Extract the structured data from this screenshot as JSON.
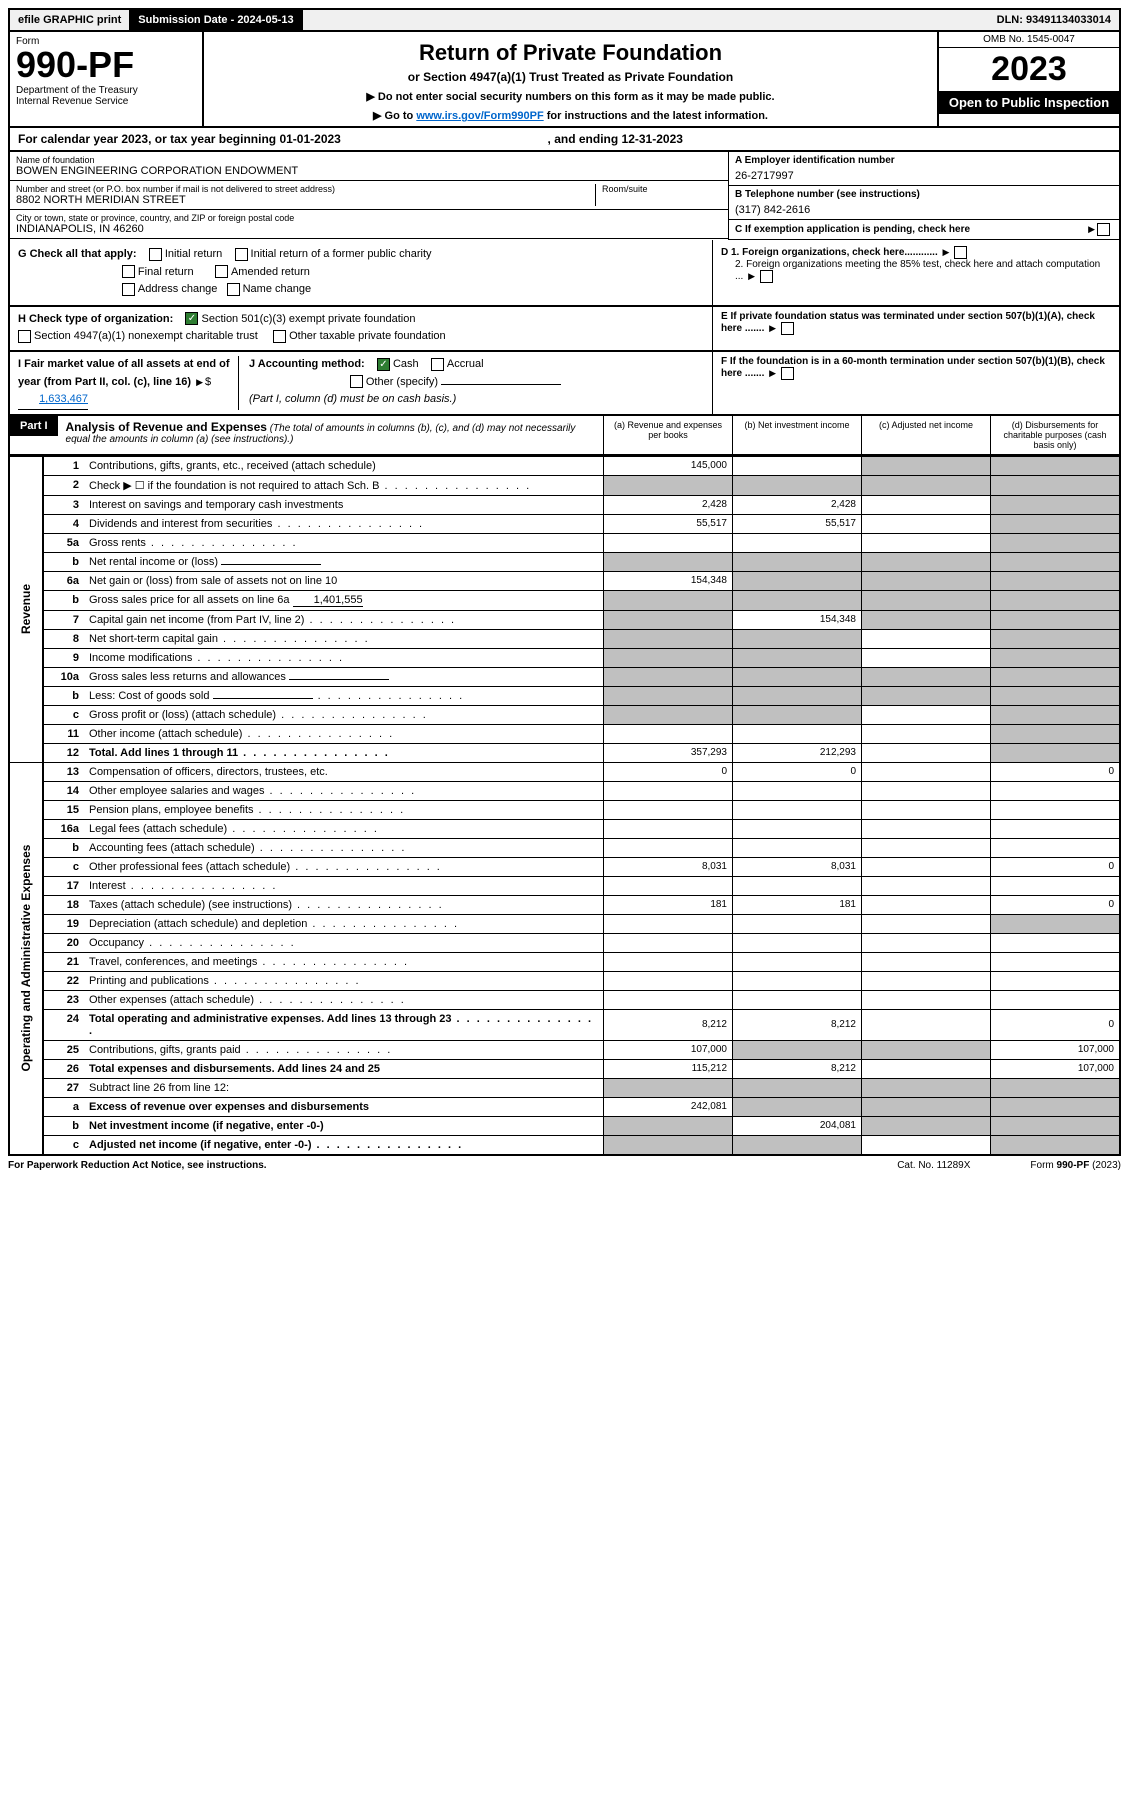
{
  "topbar": {
    "efile": "efile GRAPHIC print",
    "sub_label": "Submission Date - 2024-05-13",
    "dln": "DLN: 93491134033014"
  },
  "header": {
    "form_label": "Form",
    "form_number": "990-PF",
    "dept": "Department of the Treasury",
    "irs": "Internal Revenue Service",
    "title": "Return of Private Foundation",
    "subtitle": "or Section 4947(a)(1) Trust Treated as Private Foundation",
    "instr1": "▶ Do not enter social security numbers on this form as it may be made public.",
    "instr2_pre": "▶ Go to ",
    "instr2_link": "www.irs.gov/Form990PF",
    "instr2_post": " for instructions and the latest information.",
    "omb": "OMB No. 1545-0047",
    "year": "2023",
    "inspection": "Open to Public Inspection"
  },
  "calendar": {
    "text_pre": "For calendar year 2023, or tax year beginning ",
    "begin": "01-01-2023",
    "mid": " , and ending ",
    "end": "12-31-2023"
  },
  "entity": {
    "name_label": "Name of foundation",
    "name": "BOWEN ENGINEERING CORPORATION ENDOWMENT",
    "addr_label": "Number and street (or P.O. box number if mail is not delivered to street address)",
    "addr": "8802 NORTH MERIDIAN STREET",
    "room_label": "Room/suite",
    "city_label": "City or town, state or province, country, and ZIP or foreign postal code",
    "city": "INDIANAPOLIS, IN  46260",
    "ein_label": "A Employer identification number",
    "ein": "26-2717997",
    "phone_label": "B Telephone number (see instructions)",
    "phone": "(317) 842-2616",
    "c_label": "C If exemption application is pending, check here"
  },
  "checks": {
    "g_label": "G Check all that apply:",
    "g_opts": [
      "Initial return",
      "Initial return of a former public charity",
      "Final return",
      "Amended return",
      "Address change",
      "Name change"
    ],
    "h_label": "H Check type of organization:",
    "h_opt1": "Section 501(c)(3) exempt private foundation",
    "h_opt2": "Section 4947(a)(1) nonexempt charitable trust",
    "h_opt3": "Other taxable private foundation",
    "i_label": "I Fair market value of all assets at end of year (from Part II, col. (c), line 16)",
    "i_val": "1,633,467",
    "j_label": "J Accounting method:",
    "j_cash": "Cash",
    "j_accrual": "Accrual",
    "j_other": "Other (specify)",
    "j_note": "(Part I, column (d) must be on cash basis.)",
    "d1": "D 1. Foreign organizations, check here............",
    "d2": "2. Foreign organizations meeting the 85% test, check here and attach computation ...",
    "e_label": "E  If private foundation status was terminated under section 507(b)(1)(A), check here .......",
    "f_label": "F  If the foundation is in a 60-month termination under section 507(b)(1)(B), check here ......."
  },
  "part1": {
    "label": "Part I",
    "title": "Analysis of Revenue and Expenses",
    "note": " (The total of amounts in columns (b), (c), and (d) may not necessarily equal the amounts in column (a) (see instructions).)",
    "col_a": "(a)   Revenue and expenses per books",
    "col_b": "(b)   Net investment income",
    "col_c": "(c)   Adjusted net income",
    "col_d": "(d)   Disbursements for charitable purposes (cash basis only)"
  },
  "sidelabels": {
    "revenue": "Revenue",
    "opex": "Operating and Administrative Expenses"
  },
  "rows": [
    {
      "n": "1",
      "d": "Contributions, gifts, grants, etc., received (attach schedule)",
      "a": "145,000",
      "b": "",
      "c": "grey",
      "dcol": "grey"
    },
    {
      "n": "2",
      "d": "Check ▶ ☐ if the foundation is not required to attach Sch. B",
      "a": "grey",
      "b": "grey",
      "c": "grey",
      "dcol": "grey",
      "dots": true
    },
    {
      "n": "3",
      "d": "Interest on savings and temporary cash investments",
      "a": "2,428",
      "b": "2,428",
      "c": "",
      "dcol": "grey"
    },
    {
      "n": "4",
      "d": "Dividends and interest from securities",
      "a": "55,517",
      "b": "55,517",
      "c": "",
      "dcol": "grey",
      "dots": true
    },
    {
      "n": "5a",
      "d": "Gross rents",
      "a": "",
      "b": "",
      "c": "",
      "dcol": "grey",
      "dots": true
    },
    {
      "n": "b",
      "d": "Net rental income or (loss)",
      "a": "grey",
      "b": "grey",
      "c": "grey",
      "dcol": "grey",
      "inline": true
    },
    {
      "n": "6a",
      "d": "Net gain or (loss) from sale of assets not on line 10",
      "a": "154,348",
      "b": "grey",
      "c": "grey",
      "dcol": "grey"
    },
    {
      "n": "b",
      "d": "Gross sales price for all assets on line 6a",
      "a": "grey",
      "b": "grey",
      "c": "grey",
      "dcol": "grey",
      "inline_val": "1,401,555"
    },
    {
      "n": "7",
      "d": "Capital gain net income (from Part IV, line 2)",
      "a": "grey",
      "b": "154,348",
      "c": "grey",
      "dcol": "grey",
      "dots": true
    },
    {
      "n": "8",
      "d": "Net short-term capital gain",
      "a": "grey",
      "b": "grey",
      "c": "",
      "dcol": "grey",
      "dots": true
    },
    {
      "n": "9",
      "d": "Income modifications",
      "a": "grey",
      "b": "grey",
      "c": "",
      "dcol": "grey",
      "dots": true
    },
    {
      "n": "10a",
      "d": "Gross sales less returns and allowances",
      "a": "grey",
      "b": "grey",
      "c": "grey",
      "dcol": "grey",
      "inline": true
    },
    {
      "n": "b",
      "d": "Less: Cost of goods sold",
      "a": "grey",
      "b": "grey",
      "c": "grey",
      "dcol": "grey",
      "inline": true,
      "dots": true
    },
    {
      "n": "c",
      "d": "Gross profit or (loss) (attach schedule)",
      "a": "grey",
      "b": "grey",
      "c": "",
      "dcol": "grey",
      "dots": true
    },
    {
      "n": "11",
      "d": "Other income (attach schedule)",
      "a": "",
      "b": "",
      "c": "",
      "dcol": "grey",
      "dots": true
    },
    {
      "n": "12",
      "d": "Total. Add lines 1 through 11",
      "a": "357,293",
      "b": "212,293",
      "c": "",
      "dcol": "grey",
      "bold": true,
      "dots": true
    },
    {
      "n": "13",
      "d": "Compensation of officers, directors, trustees, etc.",
      "a": "0",
      "b": "0",
      "c": "",
      "dcol": "0"
    },
    {
      "n": "14",
      "d": "Other employee salaries and wages",
      "a": "",
      "b": "",
      "c": "",
      "dcol": "",
      "dots": true
    },
    {
      "n": "15",
      "d": "Pension plans, employee benefits",
      "a": "",
      "b": "",
      "c": "",
      "dcol": "",
      "dots": true
    },
    {
      "n": "16a",
      "d": "Legal fees (attach schedule)",
      "a": "",
      "b": "",
      "c": "",
      "dcol": "",
      "dots": true
    },
    {
      "n": "b",
      "d": "Accounting fees (attach schedule)",
      "a": "",
      "b": "",
      "c": "",
      "dcol": "",
      "dots": true
    },
    {
      "n": "c",
      "d": "Other professional fees (attach schedule)",
      "a": "8,031",
      "b": "8,031",
      "c": "",
      "dcol": "0",
      "dots": true
    },
    {
      "n": "17",
      "d": "Interest",
      "a": "",
      "b": "",
      "c": "",
      "dcol": "",
      "dots": true
    },
    {
      "n": "18",
      "d": "Taxes (attach schedule) (see instructions)",
      "a": "181",
      "b": "181",
      "c": "",
      "dcol": "0",
      "dots": true
    },
    {
      "n": "19",
      "d": "Depreciation (attach schedule) and depletion",
      "a": "",
      "b": "",
      "c": "",
      "dcol": "grey",
      "dots": true
    },
    {
      "n": "20",
      "d": "Occupancy",
      "a": "",
      "b": "",
      "c": "",
      "dcol": "",
      "dots": true
    },
    {
      "n": "21",
      "d": "Travel, conferences, and meetings",
      "a": "",
      "b": "",
      "c": "",
      "dcol": "",
      "dots": true
    },
    {
      "n": "22",
      "d": "Printing and publications",
      "a": "",
      "b": "",
      "c": "",
      "dcol": "",
      "dots": true
    },
    {
      "n": "23",
      "d": "Other expenses (attach schedule)",
      "a": "",
      "b": "",
      "c": "",
      "dcol": "",
      "dots": true
    },
    {
      "n": "24",
      "d": "Total operating and administrative expenses. Add lines 13 through 23",
      "a": "8,212",
      "b": "8,212",
      "c": "",
      "dcol": "0",
      "bold": true,
      "dots": true
    },
    {
      "n": "25",
      "d": "Contributions, gifts, grants paid",
      "a": "107,000",
      "b": "grey",
      "c": "grey",
      "dcol": "107,000",
      "dots": true
    },
    {
      "n": "26",
      "d": "Total expenses and disbursements. Add lines 24 and 25",
      "a": "115,212",
      "b": "8,212",
      "c": "",
      "dcol": "107,000",
      "bold": true
    },
    {
      "n": "27",
      "d": "Subtract line 26 from line 12:",
      "a": "grey",
      "b": "grey",
      "c": "grey",
      "dcol": "grey"
    },
    {
      "n": "a",
      "d": "Excess of revenue over expenses and disbursements",
      "a": "242,081",
      "b": "grey",
      "c": "grey",
      "dcol": "grey",
      "bold": true
    },
    {
      "n": "b",
      "d": "Net investment income (if negative, enter -0-)",
      "a": "grey",
      "b": "204,081",
      "c": "grey",
      "dcol": "grey",
      "bold": true
    },
    {
      "n": "c",
      "d": "Adjusted net income (if negative, enter -0-)",
      "a": "grey",
      "b": "grey",
      "c": "",
      "dcol": "grey",
      "bold": true,
      "dots": true
    }
  ],
  "footer": {
    "left": "For Paperwork Reduction Act Notice, see instructions.",
    "mid": "Cat. No. 11289X",
    "right": "Form 990-PF (2023)"
  }
}
